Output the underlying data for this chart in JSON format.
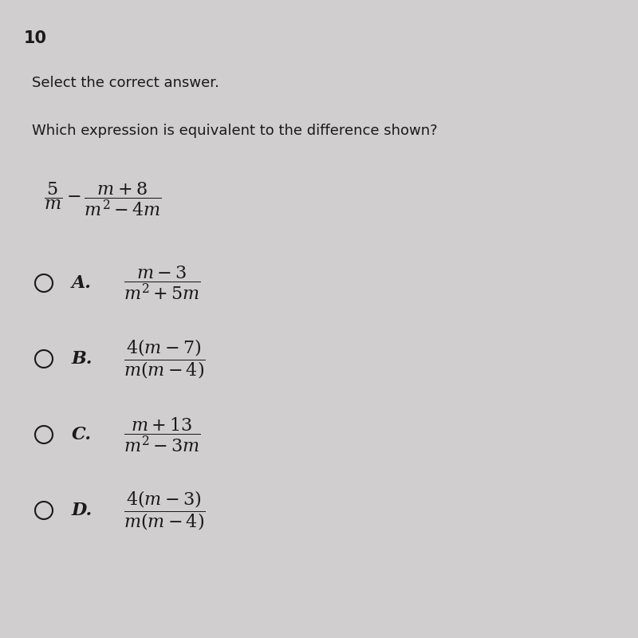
{
  "background_color": "#d0cece",
  "question_number": "10",
  "instruction": "Select the correct answer.",
  "question": "Which expression is equivalent to the difference shown?",
  "main_expr_latex": "$\\dfrac{5}{m} - \\dfrac{m + 8}{m^2 - 4m}$",
  "options": [
    {
      "label": "A.",
      "expr_latex": "$\\dfrac{m - 3}{m^2 + 5m}$"
    },
    {
      "label": "B.",
      "expr_latex": "$\\dfrac{4(m - 7)}{m(m - 4)}$"
    },
    {
      "label": "C.",
      "expr_latex": "$\\dfrac{m + 13}{m^2 - 3m}$"
    },
    {
      "label": "D.",
      "expr_latex": "$\\dfrac{4(m - 3)}{m(m - 4)}$"
    }
  ],
  "text_color": "#1a1a1a",
  "circle_color": "#1a1a1a",
  "bg_color": "#d0cece",
  "font_size_question_num": 15,
  "font_size_instruction": 13,
  "font_size_question": 13,
  "font_size_expression": 16,
  "font_size_options": 16,
  "figsize": [
    8.0,
    8.0
  ],
  "dpi": 100
}
